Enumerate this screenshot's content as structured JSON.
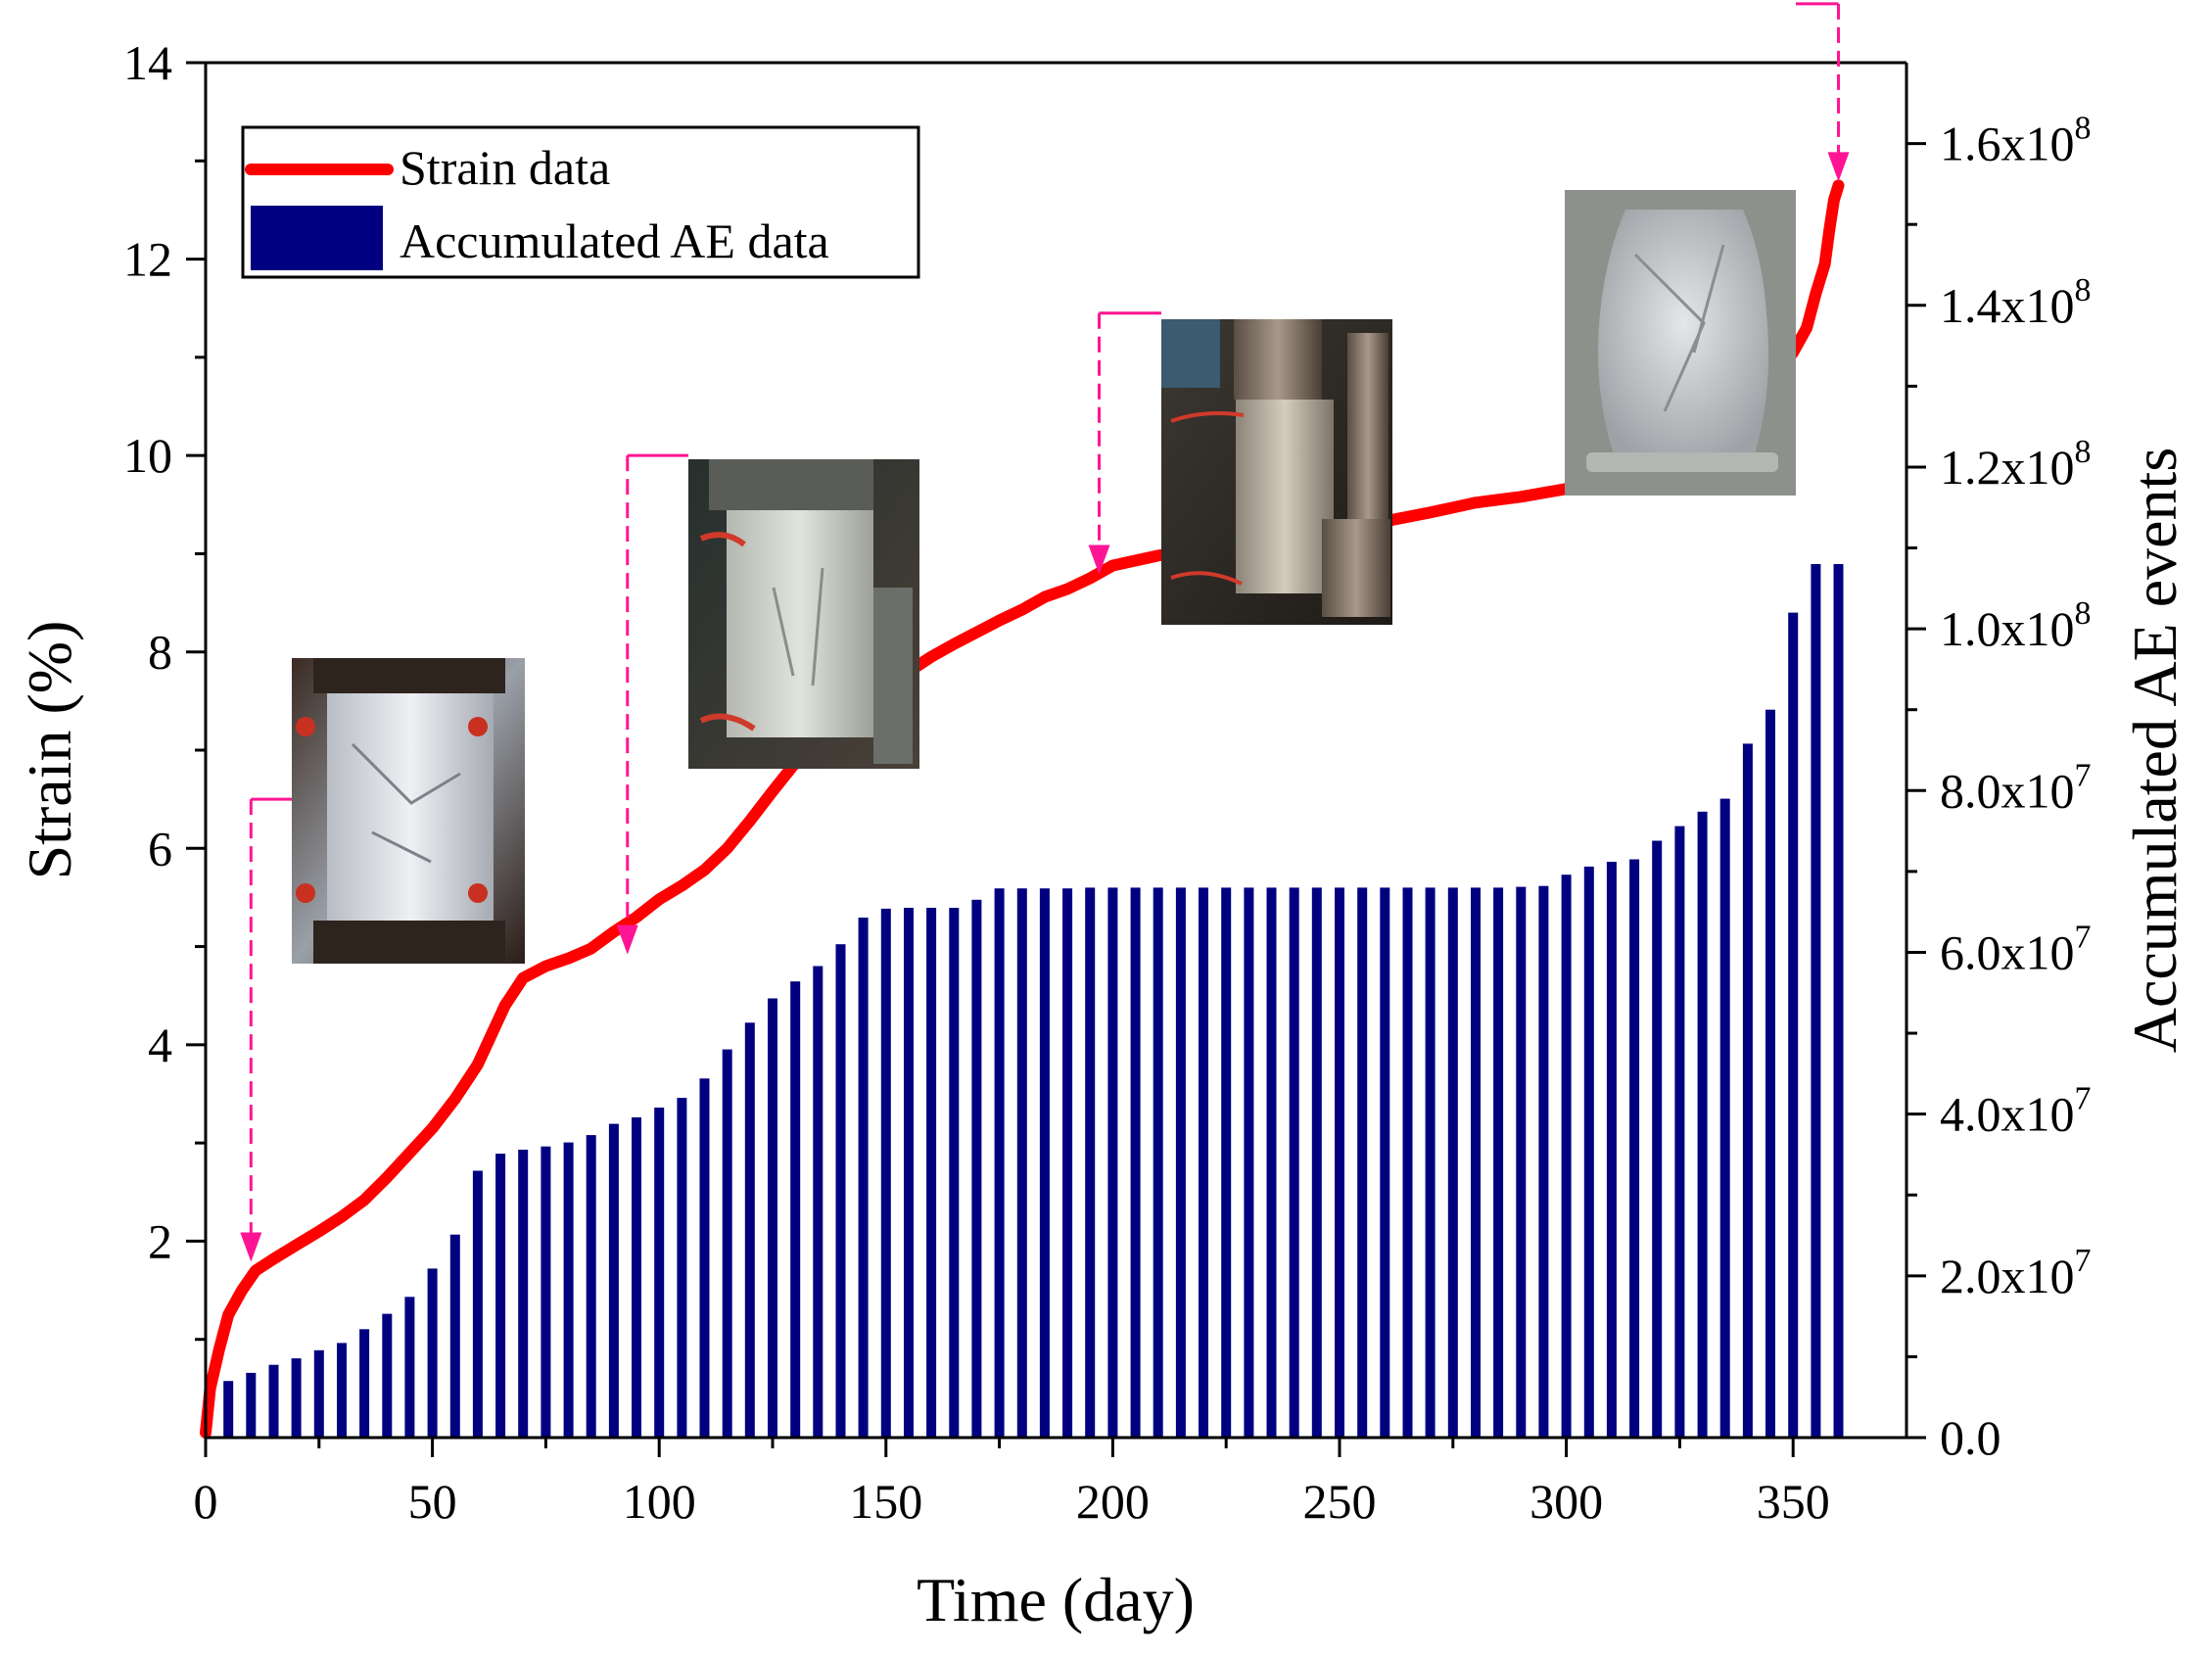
{
  "chart_data": {
    "type": "bar+line",
    "xlabel": "Time (day)",
    "ylabel_left": "Strain (%)",
    "ylabel_right": "Accumulated AE events",
    "xlim": [
      0,
      375
    ],
    "ylim_left": [
      0,
      14
    ],
    "ylim_right": [
      0,
      170000000
    ],
    "x_ticks": [
      0,
      50,
      100,
      150,
      200,
      250,
      300,
      350
    ],
    "x_tick_labels": [
      "0",
      "50",
      "100",
      "150",
      "200",
      "250",
      "300",
      "350"
    ],
    "y_left_ticks": [
      2,
      4,
      6,
      8,
      10,
      12,
      14
    ],
    "y_left_tick_labels": [
      "2",
      "4",
      "6",
      "8",
      "10",
      "12",
      "14"
    ],
    "y_right_ticks": [
      0,
      20000000,
      40000000,
      60000000,
      80000000,
      100000000,
      120000000,
      140000000,
      160000000
    ],
    "y_right_tick_labels": [
      {
        "mantissa": "0.0",
        "exp": ""
      },
      {
        "mantissa": "2.0x10",
        "exp": "7"
      },
      {
        "mantissa": "4.0x10",
        "exp": "7"
      },
      {
        "mantissa": "6.0x10",
        "exp": "7"
      },
      {
        "mantissa": "8.0x10",
        "exp": "7"
      },
      {
        "mantissa": "1.0x10",
        "exp": "8"
      },
      {
        "mantissa": "1.2x10",
        "exp": "8"
      },
      {
        "mantissa": "1.4x10",
        "exp": "8"
      },
      {
        "mantissa": "1.6x10",
        "exp": "8"
      }
    ],
    "legend": {
      "placement": "top-left",
      "entries": [
        {
          "label": "Strain data",
          "kind": "line",
          "color": "#ff0000"
        },
        {
          "label": "Accumulated AE data",
          "kind": "bar",
          "color": "#000080"
        }
      ]
    },
    "series": [
      {
        "name": "Accumulated AE data",
        "axis": "right",
        "color": "#000080",
        "x": [
          5,
          10,
          15,
          20,
          25,
          30,
          35,
          40,
          45,
          50,
          55,
          60,
          65,
          70,
          75,
          80,
          85,
          90,
          95,
          100,
          105,
          110,
          115,
          120,
          125,
          130,
          135,
          140,
          145,
          150,
          155,
          160,
          165,
          170,
          175,
          180,
          185,
          190,
          195,
          200,
          205,
          210,
          215,
          220,
          225,
          230,
          235,
          240,
          245,
          250,
          255,
          260,
          265,
          270,
          275,
          280,
          285,
          290,
          295,
          300,
          305,
          310,
          315,
          320,
          325,
          330,
          335,
          340,
          345,
          350,
          355,
          360
        ],
        "values": [
          7000000,
          8000000,
          9000000,
          9800000,
          10800000,
          11700000,
          13400000,
          15300000,
          17400000,
          20900000,
          25100000,
          33000000,
          35100000,
          35600000,
          36000000,
          36500000,
          37400000,
          38800000,
          39600000,
          40800000,
          42000000,
          44400000,
          48000000,
          51300000,
          54300000,
          56400000,
          58300000,
          61000000,
          64300000,
          65400000,
          65500000,
          65500000,
          65500000,
          66500000,
          67900000,
          67900000,
          67900000,
          67900000,
          68000000,
          68000000,
          68000000,
          68000000,
          68000000,
          68000000,
          68000000,
          68000000,
          68000000,
          68000000,
          68000000,
          68000000,
          68000000,
          68000000,
          68000000,
          68000000,
          68000000,
          68000000,
          68000000,
          68100000,
          68200000,
          69600000,
          70600000,
          71200000,
          71500000,
          73800000,
          75600000,
          77400000,
          79000000,
          85800000,
          90000000,
          102000000,
          108000000,
          108000000
        ]
      },
      {
        "name": "Strain data",
        "axis": "left",
        "color": "#ff0000",
        "x": [
          0,
          1,
          3,
          5,
          8,
          11,
          15,
          20,
          25,
          30,
          35,
          40,
          45,
          50,
          55,
          60,
          63,
          66,
          70,
          75,
          80,
          85,
          90,
          95,
          100,
          105,
          110,
          115,
          120,
          125,
          130,
          135,
          140,
          145,
          150,
          155,
          160,
          165,
          170,
          175,
          180,
          185,
          190,
          195,
          200,
          210,
          220,
          230,
          240,
          250,
          260,
          270,
          280,
          290,
          300,
          310,
          320,
          325,
          330,
          335,
          340,
          345,
          350,
          353,
          355,
          357,
          358,
          359,
          360
        ],
        "values": [
          0.05,
          0.5,
          0.9,
          1.25,
          1.5,
          1.7,
          1.82,
          1.96,
          2.1,
          2.25,
          2.42,
          2.65,
          2.9,
          3.15,
          3.45,
          3.8,
          4.1,
          4.4,
          4.68,
          4.8,
          4.88,
          4.98,
          5.15,
          5.3,
          5.48,
          5.62,
          5.78,
          6.0,
          6.28,
          6.58,
          6.87,
          7.1,
          7.25,
          7.4,
          7.6,
          7.8,
          7.95,
          8.08,
          8.2,
          8.32,
          8.43,
          8.56,
          8.64,
          8.75,
          8.88,
          8.98,
          9.06,
          9.13,
          9.2,
          9.26,
          9.33,
          9.42,
          9.52,
          9.58,
          9.66,
          9.76,
          9.88,
          10.0,
          10.12,
          10.3,
          10.5,
          10.74,
          11.05,
          11.3,
          11.65,
          11.95,
          12.3,
          12.6,
          12.75
        ]
      }
    ],
    "annotations": [
      {
        "type": "photo",
        "subject": "cylindrical specimen with sensors",
        "from_day": 10,
        "arrow_strain": 1.75,
        "leader_y_strain": 6.5
      },
      {
        "type": "photo",
        "subject": "cylindrical specimen in frame",
        "from_day": 93,
        "arrow_strain": 4.88,
        "leader_y_strain": 10.0
      },
      {
        "type": "photo",
        "subject": "specimen between loading platens",
        "from_day": 197,
        "arrow_strain": 8.75,
        "leader_y_strain": 11.45
      },
      {
        "type": "photo",
        "subject": "deformed bulged specimen",
        "from_day": 360,
        "arrow_strain": 12.75,
        "leader_y_strain": 14.6
      }
    ]
  }
}
